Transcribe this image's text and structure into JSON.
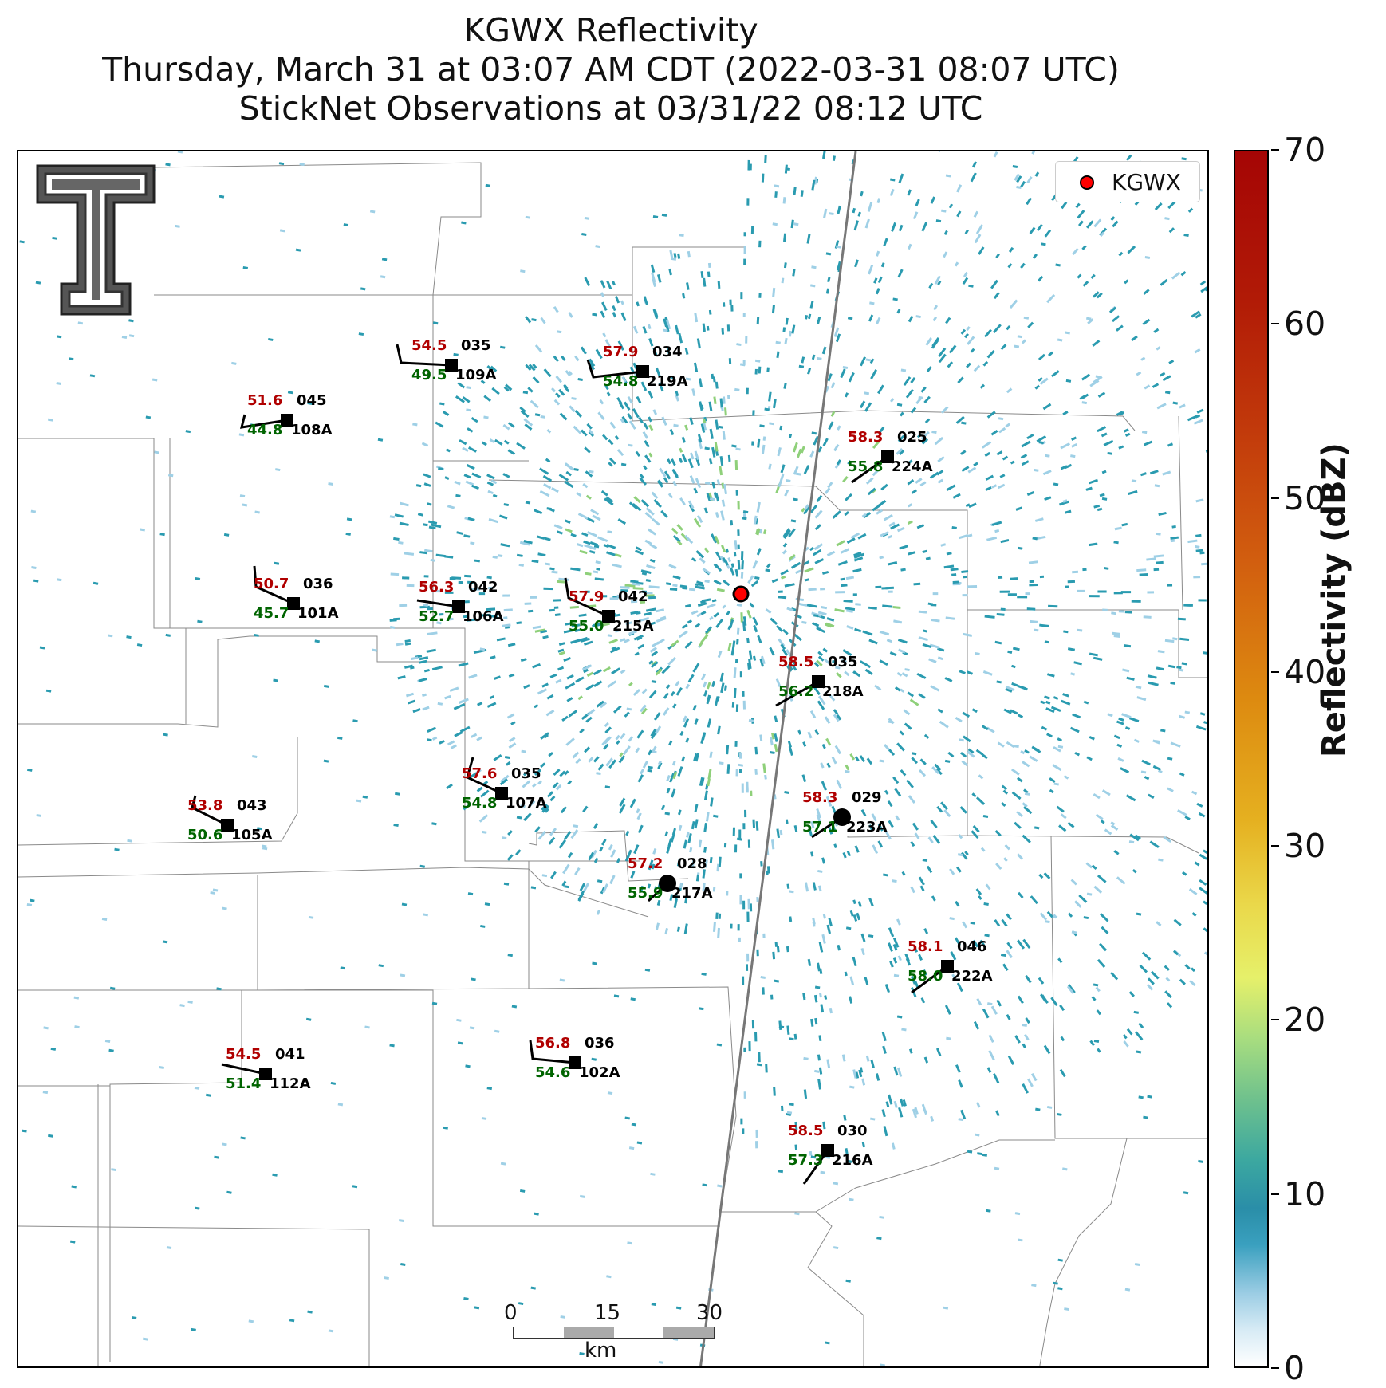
{
  "title": {
    "line1": "KGWX Reflectivity",
    "line2": "Thursday, March 31 at 03:07 AM CDT (2022-03-31 08:07 UTC)",
    "line3": "StickNet Observations at 03/31/22 08:12 UTC"
  },
  "legend": {
    "label": "KGWX",
    "marker_color": "#ff0000"
  },
  "colorbar": {
    "title": "Reflectivity (dBZ)",
    "ticks": [
      "0",
      "10",
      "20",
      "30",
      "40",
      "50",
      "60",
      "70"
    ],
    "min": 0,
    "max": 70
  },
  "scale_bar": {
    "ticks": [
      "0",
      "15",
      "30"
    ],
    "units": "km"
  },
  "stations": [
    {
      "id": "109A",
      "temp": "54.5",
      "dew": "49.5",
      "dir": "035",
      "marker": "square"
    },
    {
      "id": "219A",
      "temp": "57.9",
      "dew": "54.8",
      "dir": "034",
      "marker": "square"
    },
    {
      "id": "108A",
      "temp": "51.6",
      "dew": "44.8",
      "dir": "045",
      "marker": "square"
    },
    {
      "id": "224A",
      "temp": "58.3",
      "dew": "55.8",
      "dir": "025",
      "marker": "square"
    },
    {
      "id": "101A",
      "temp": "50.7",
      "dew": "45.7",
      "dir": "036",
      "marker": "square"
    },
    {
      "id": "106A",
      "temp": "56.3",
      "dew": "52.7",
      "dir": "042",
      "marker": "square"
    },
    {
      "id": "215A",
      "temp": "57.9",
      "dew": "55.0",
      "dir": "042",
      "marker": "square"
    },
    {
      "id": "218A",
      "temp": "58.5",
      "dew": "56.2",
      "dir": "035",
      "marker": "square"
    },
    {
      "id": "107A",
      "temp": "57.6",
      "dew": "54.8",
      "dir": "035",
      "marker": "square"
    },
    {
      "id": "223A",
      "temp": "58.3",
      "dew": "57.1",
      "dir": "029",
      "marker": "circle"
    },
    {
      "id": "105A",
      "temp": "53.8",
      "dew": "50.6",
      "dir": "043",
      "marker": "square"
    },
    {
      "id": "217A",
      "temp": "57.2",
      "dew": "55.9",
      "dir": "028",
      "marker": "circle"
    },
    {
      "id": "222A",
      "temp": "58.1",
      "dew": "58.0",
      "dir": "046",
      "marker": "square"
    },
    {
      "id": "112A",
      "temp": "54.5",
      "dew": "51.4",
      "dir": "041",
      "marker": "square"
    },
    {
      "id": "102A",
      "temp": "56.8",
      "dew": "54.6",
      "dir": "036",
      "marker": "square"
    },
    {
      "id": "216A",
      "temp": "58.5",
      "dew": "57.3",
      "dir": "030",
      "marker": "square"
    }
  ],
  "colors": {
    "temp_text": "#b00000",
    "dew_text": "#006400",
    "echo_main": "#2a9bb0",
    "echo_light": "#9fd0e6",
    "echo_green": "#8fd07a"
  }
}
